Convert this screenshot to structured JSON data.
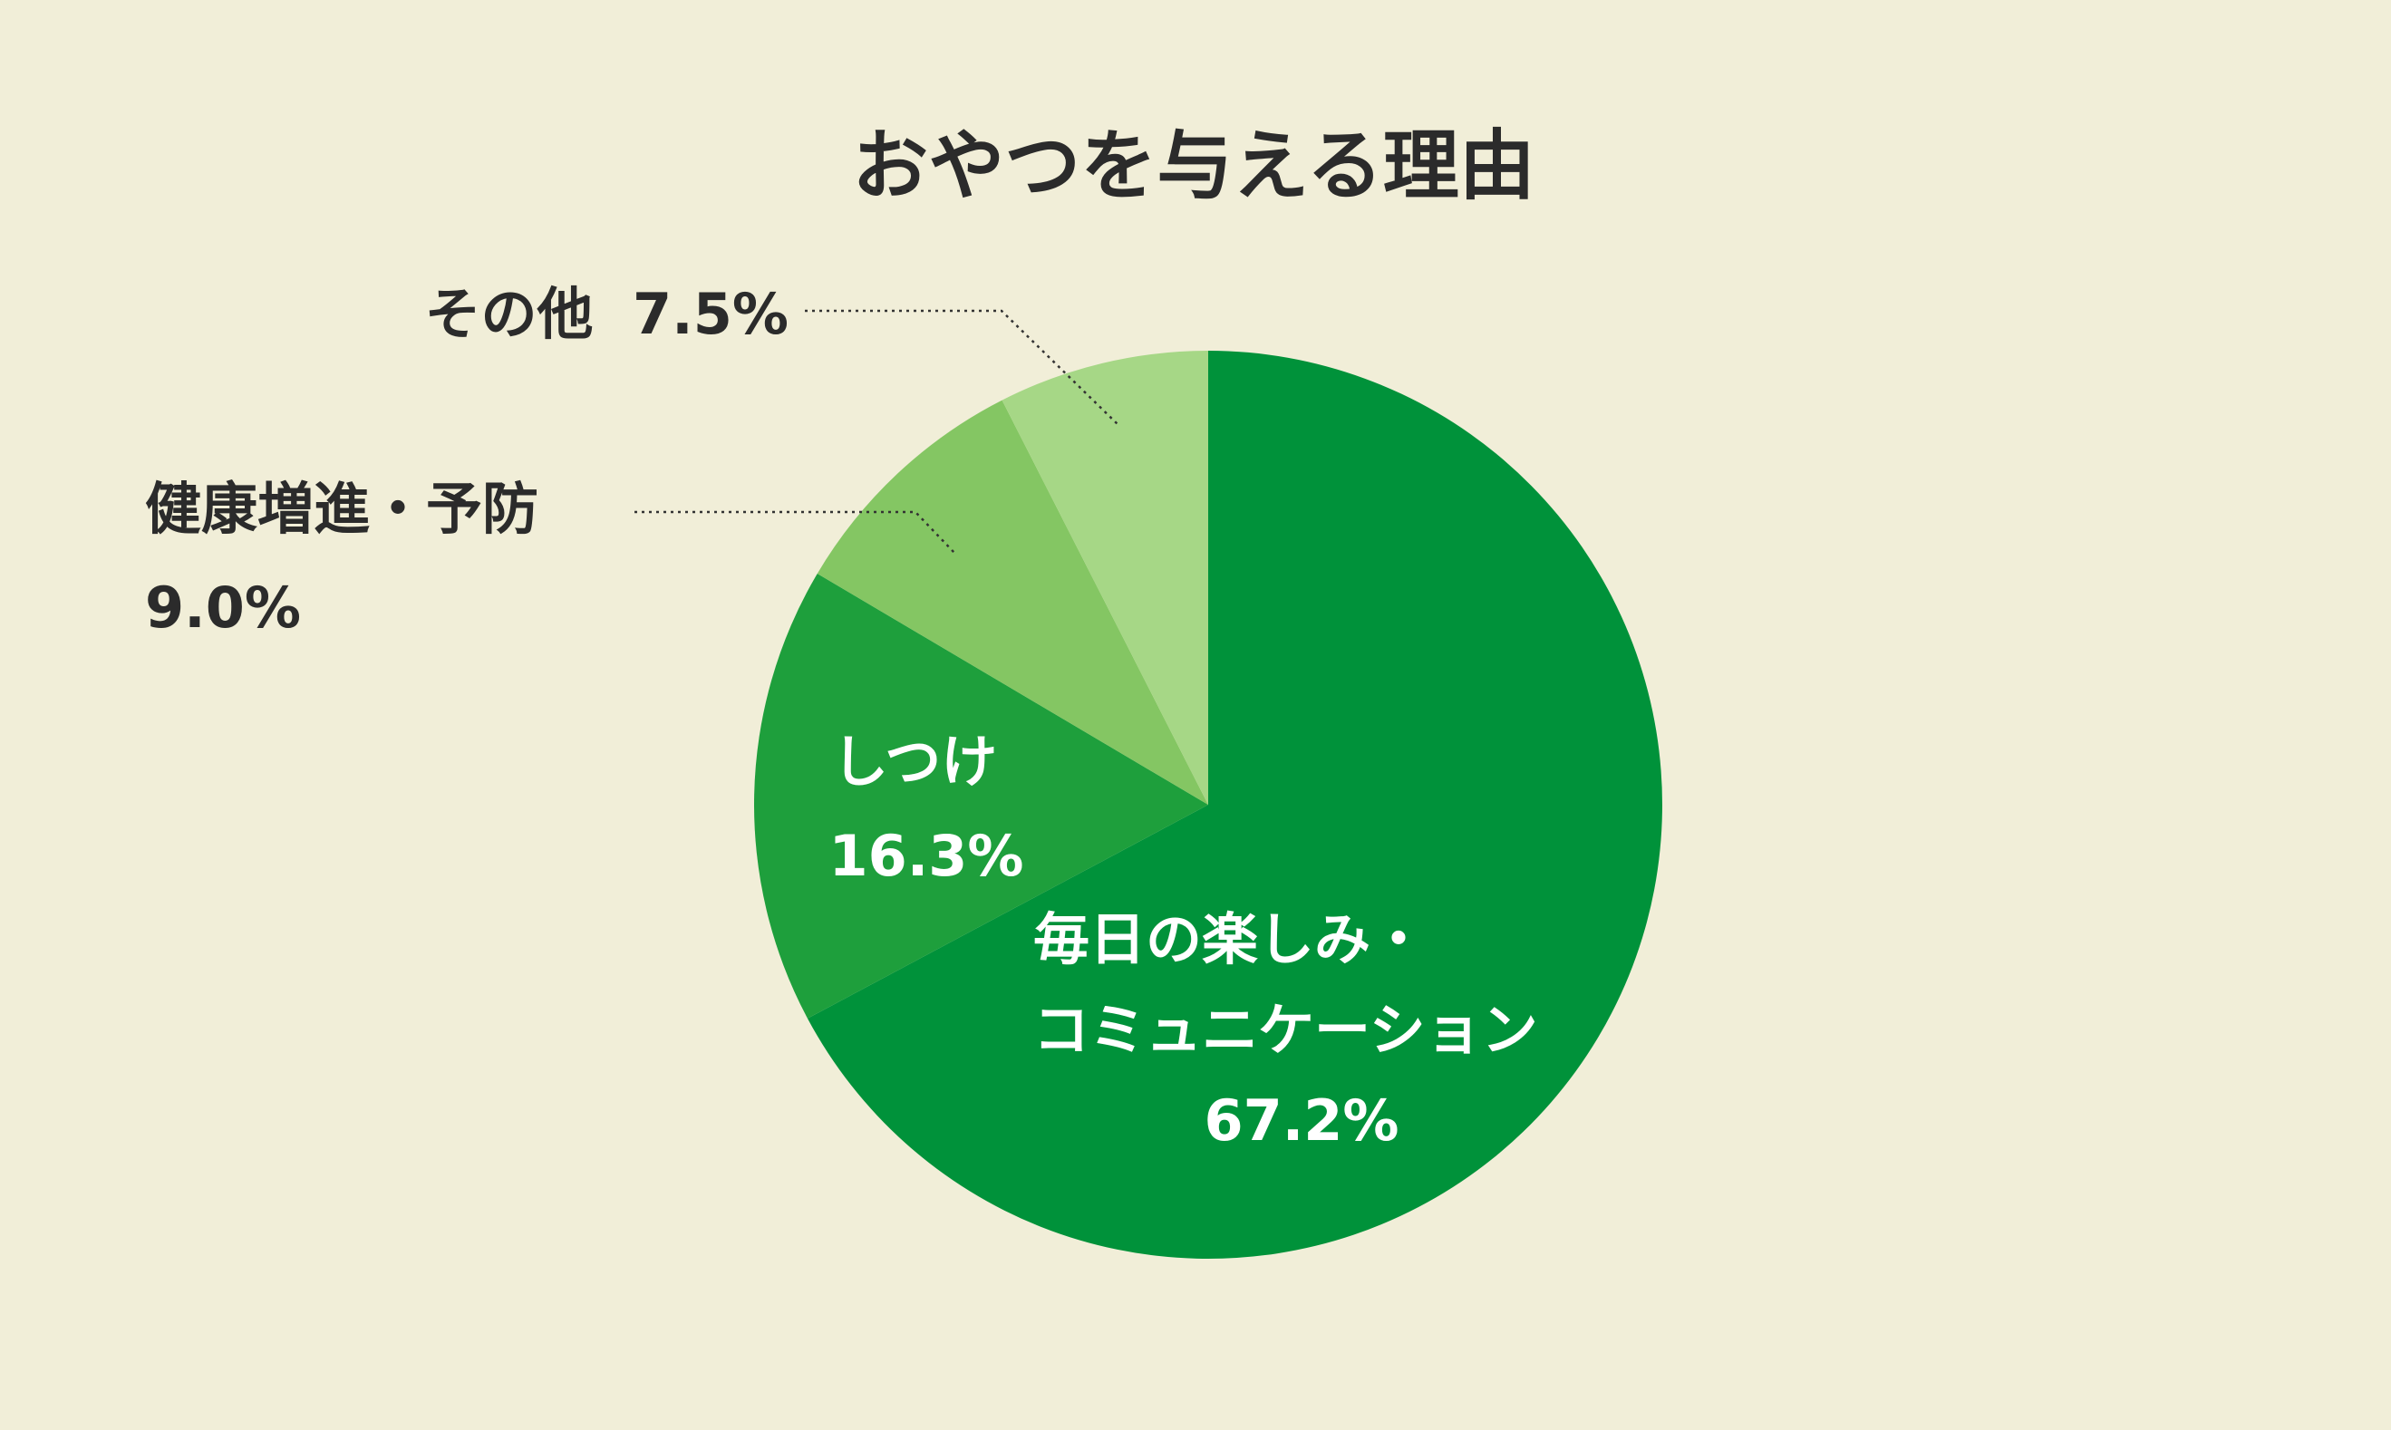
{
  "chart_data": {
    "type": "pie",
    "title": "おやつを与える理由",
    "start_angle_deg": 0,
    "direction": "clockwise",
    "slices": [
      {
        "label": "毎日の楽しみ・コミュニケーション",
        "label_lines": [
          "毎日の楽しみ・",
          "コミュニケーション"
        ],
        "value": 67.2,
        "value_text": "67.2%",
        "color": "#00923a"
      },
      {
        "label": "しつけ",
        "label_lines": [
          "しつけ"
        ],
        "value": 16.3,
        "value_text": "16.3%",
        "color": "#1e9f3c"
      },
      {
        "label": "健康増進・予防",
        "label_lines": [
          "健康増進・予防"
        ],
        "value": 9.0,
        "value_text": "9.0%",
        "color": "#84c663"
      },
      {
        "label": "その他",
        "label_lines": [
          "その他"
        ],
        "value": 7.5,
        "value_text": "7.5%",
        "color": "#a6d786"
      }
    ]
  }
}
